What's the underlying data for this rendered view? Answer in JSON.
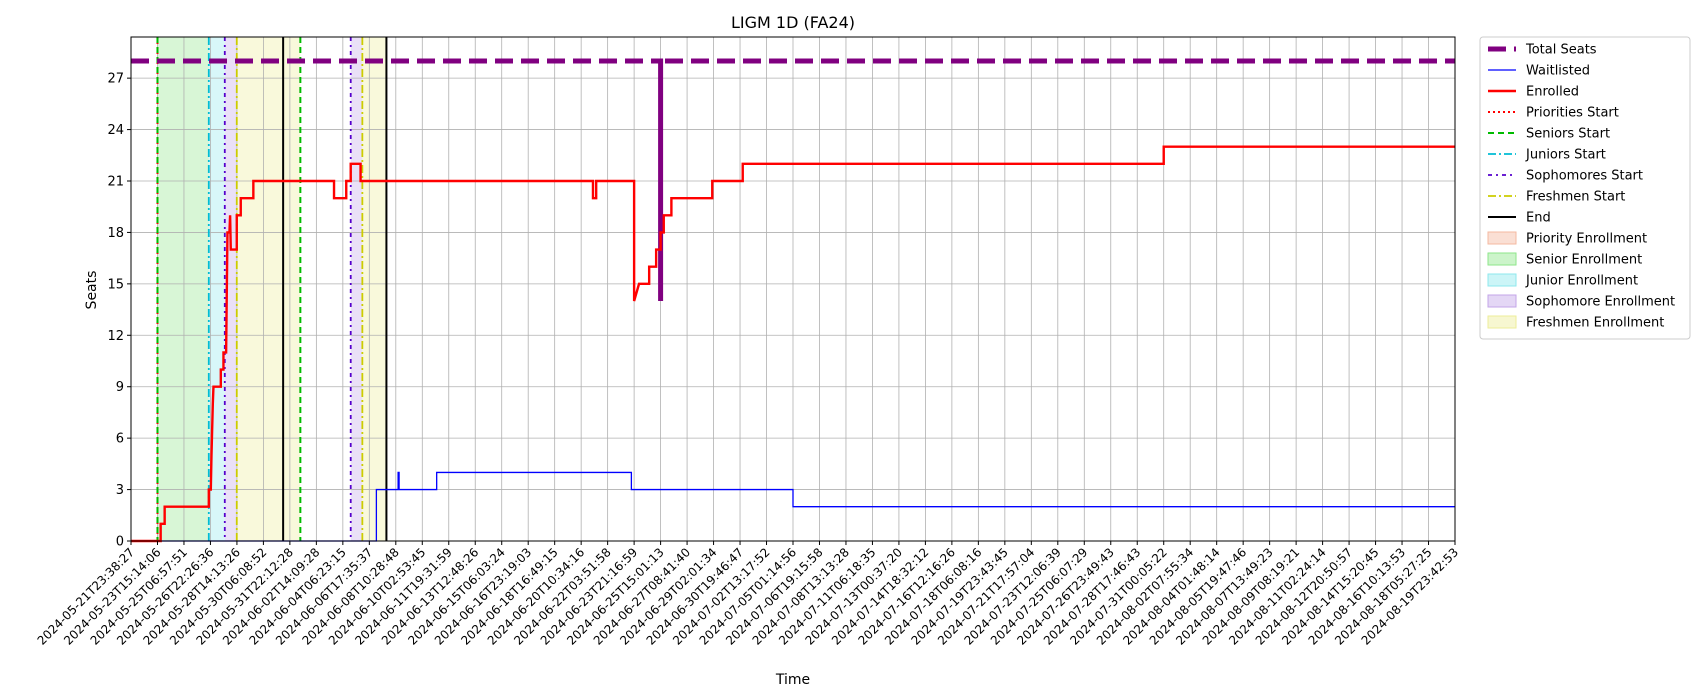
{
  "chart_data": {
    "type": "line",
    "title": "LIGM 1D (FA24)",
    "xlabel": "Time",
    "ylabel": "Seats",
    "ylim": [
      0,
      29.4
    ],
    "yticks": [
      0,
      3,
      6,
      9,
      12,
      15,
      18,
      21,
      24,
      27
    ],
    "x_range": [
      "2024-05-21T23:38:27",
      "2024-08-19T23:42:53"
    ],
    "x_tick_labels": [
      "2024-05-21T23:38:27",
      "2024-05-23T15:14:06",
      "2024-05-25T06:57:51",
      "2024-05-26T22:26:36",
      "2024-05-28T14:13:26",
      "2024-05-30T06:08:52",
      "2024-05-31T22:12:28",
      "2024-06-02T14:09:28",
      "2024-06-04T06:23:15",
      "2024-06-06T17:35:37",
      "2024-06-08T10:28:48",
      "2024-06-10T02:53:45",
      "2024-06-11T19:31:59",
      "2024-06-13T12:48:26",
      "2024-06-15T06:03:24",
      "2024-06-16T23:19:03",
      "2024-06-18T16:49:15",
      "2024-06-20T10:34:16",
      "2024-06-22T03:51:58",
      "2024-06-23T21:16:59",
      "2024-06-25T15:01:13",
      "2024-06-27T08:41:40",
      "2024-06-29T02:01:34",
      "2024-06-30T19:46:47",
      "2024-07-02T13:17:52",
      "2024-07-05T01:14:56",
      "2024-07-06T19:15:58",
      "2024-07-08T13:13:28",
      "2024-07-11T06:18:35",
      "2024-07-13T00:37:20",
      "2024-07-14T18:32:12",
      "2024-07-16T12:16:26",
      "2024-07-18T06:08:16",
      "2024-07-19T23:43:45",
      "2024-07-21T17:57:04",
      "2024-07-23T12:06:39",
      "2024-07-25T06:07:29",
      "2024-07-26T23:49:43",
      "2024-07-28T17:46:43",
      "2024-07-31T00:05:22",
      "2024-08-02T07:55:34",
      "2024-08-04T01:48:14",
      "2024-08-05T19:47:46",
      "2024-08-07T13:49:23",
      "2024-08-09T08:19:21",
      "2024-08-11T02:24:14",
      "2024-08-12T20:50:57",
      "2024-08-14T15:20:45",
      "2024-08-16T10:13:53",
      "2024-08-18T05:27:25",
      "2024-08-19T23:42:53"
    ],
    "grid": true,
    "legend_position": "outside-right",
    "series": [
      {
        "name": "Total Seats",
        "style": "dashed-thick",
        "color": "#800080",
        "points": [
          {
            "x": "2024-05-21T23:38:27",
            "y": 28
          },
          {
            "x": "2024-06-25T15:01:13",
            "y": 28
          },
          {
            "x": "2024-06-25T15:01:13",
            "y": 14
          },
          {
            "x": "2024-06-25T15:01:13",
            "y": 28
          },
          {
            "x": "2024-08-19T23:42:53",
            "y": 28
          }
        ]
      },
      {
        "name": "Waitlisted",
        "style": "solid-thin",
        "color": "#0000ff",
        "points": [
          {
            "x": "2024-05-21T23:38:27",
            "y": 0
          },
          {
            "x": "2024-06-07T04:30:00",
            "y": 0
          },
          {
            "x": "2024-06-07T04:30:00",
            "y": 3
          },
          {
            "x": "2024-06-08T14:00:00",
            "y": 3
          },
          {
            "x": "2024-06-08T14:00:00",
            "y": 4
          },
          {
            "x": "2024-06-08T15:30:00",
            "y": 4
          },
          {
            "x": "2024-06-08T15:30:00",
            "y": 3
          },
          {
            "x": "2024-06-11T01:00:00",
            "y": 3
          },
          {
            "x": "2024-06-11T01:00:00",
            "y": 4
          },
          {
            "x": "2024-06-23T17:00:00",
            "y": 4
          },
          {
            "x": "2024-06-23T17:00:00",
            "y": 3
          },
          {
            "x": "2024-07-05T01:14:56",
            "y": 3
          },
          {
            "x": "2024-07-05T01:14:56",
            "y": 2
          },
          {
            "x": "2024-08-19T23:42:53",
            "y": 2
          }
        ]
      },
      {
        "name": "Enrolled",
        "style": "solid-thick",
        "color": "#ff0000",
        "points": [
          {
            "x": "2024-05-21T23:38:27",
            "y": 0
          },
          {
            "x": "2024-05-23T20:00:00",
            "y": 0
          },
          {
            "x": "2024-05-23T20:00:00",
            "y": 1
          },
          {
            "x": "2024-05-24T02:00:00",
            "y": 1
          },
          {
            "x": "2024-05-24T02:00:00",
            "y": 2
          },
          {
            "x": "2024-05-26T20:00:00",
            "y": 2
          },
          {
            "x": "2024-05-26T20:00:00",
            "y": 3
          },
          {
            "x": "2024-05-26T23:00:00",
            "y": 3
          },
          {
            "x": "2024-05-27T00:00:00",
            "y": 5
          },
          {
            "x": "2024-05-27T02:00:00",
            "y": 8
          },
          {
            "x": "2024-05-27T03:00:00",
            "y": 9
          },
          {
            "x": "2024-05-27T14:00:00",
            "y": 9
          },
          {
            "x": "2024-05-27T14:00:00",
            "y": 10
          },
          {
            "x": "2024-05-27T18:00:00",
            "y": 10
          },
          {
            "x": "2024-05-27T18:00:00",
            "y": 11
          },
          {
            "x": "2024-05-27T22:00:00",
            "y": 11
          },
          {
            "x": "2024-05-28T00:00:00",
            "y": 18
          },
          {
            "x": "2024-05-28T03:00:00",
            "y": 18
          },
          {
            "x": "2024-05-28T04:00:00",
            "y": 19
          },
          {
            "x": "2024-05-28T05:00:00",
            "y": 17
          },
          {
            "x": "2024-05-28T14:00:00",
            "y": 17
          },
          {
            "x": "2024-05-28T14:00:00",
            "y": 19
          },
          {
            "x": "2024-05-28T20:00:00",
            "y": 19
          },
          {
            "x": "2024-05-28T20:00:00",
            "y": 20
          },
          {
            "x": "2024-05-29T15:00:00",
            "y": 20
          },
          {
            "x": "2024-05-29T15:00:00",
            "y": 21
          },
          {
            "x": "2024-06-03T17:00:00",
            "y": 21
          },
          {
            "x": "2024-06-03T17:00:00",
            "y": 20
          },
          {
            "x": "2024-06-04T14:00:00",
            "y": 20
          },
          {
            "x": "2024-06-04T14:00:00",
            "y": 21
          },
          {
            "x": "2024-06-05T00:00:00",
            "y": 21
          },
          {
            "x": "2024-06-05T00:00:00",
            "y": 22
          },
          {
            "x": "2024-06-05T22:00:00",
            "y": 22
          },
          {
            "x": "2024-06-05T22:00:00",
            "y": 21
          },
          {
            "x": "2024-06-21T05:00:00",
            "y": 21
          },
          {
            "x": "2024-06-21T05:00:00",
            "y": 20
          },
          {
            "x": "2024-06-21T10:00:00",
            "y": 20
          },
          {
            "x": "2024-06-21T10:00:00",
            "y": 21
          },
          {
            "x": "2024-06-23T21:16:59",
            "y": 21
          },
          {
            "x": "2024-06-23T21:16:59",
            "y": 14
          },
          {
            "x": "2024-06-24T05:00:00",
            "y": 15
          },
          {
            "x": "2024-06-24T21:00:00",
            "y": 15
          },
          {
            "x": "2024-06-24T21:00:00",
            "y": 16
          },
          {
            "x": "2024-06-25T08:00:00",
            "y": 16
          },
          {
            "x": "2024-06-25T08:00:00",
            "y": 17
          },
          {
            "x": "2024-06-25T15:00:00",
            "y": 17
          },
          {
            "x": "2024-06-25T15:00:00",
            "y": 18
          },
          {
            "x": "2024-06-25T20:00:00",
            "y": 18
          },
          {
            "x": "2024-06-25T20:00:00",
            "y": 19
          },
          {
            "x": "2024-06-26T08:00:00",
            "y": 19
          },
          {
            "x": "2024-06-26T08:00:00",
            "y": 20
          },
          {
            "x": "2024-06-29T00:00:00",
            "y": 20
          },
          {
            "x": "2024-06-29T00:00:00",
            "y": 21
          },
          {
            "x": "2024-07-01T00:00:00",
            "y": 21
          },
          {
            "x": "2024-07-01T00:00:00",
            "y": 22
          },
          {
            "x": "2024-07-31T00:05:22",
            "y": 22
          },
          {
            "x": "2024-07-31T00:05:22",
            "y": 23
          },
          {
            "x": "2024-08-19T23:42:53",
            "y": 23
          }
        ]
      }
    ],
    "events": [
      {
        "name": "Priorities Start",
        "x": "2024-05-23T15:14:06",
        "style": "dotted",
        "color": "#ff0000"
      },
      {
        "name": "Seniors Start",
        "x": "2024-05-23T15:14:06",
        "style": "dashed",
        "color": "#00bb00"
      },
      {
        "name": "Seniors Start",
        "x": "2024-06-01T14:00:00",
        "style": "dashed",
        "color": "#00bb00"
      },
      {
        "name": "Juniors Start",
        "x": "2024-05-26T20:00:00",
        "style": "dashdot",
        "color": "#00bcd4"
      },
      {
        "name": "Sophomores Start",
        "x": "2024-05-27T20:00:00",
        "style": "dashdotted",
        "color": "#5500cc"
      },
      {
        "name": "Sophomores Start",
        "x": "2024-06-05T00:00:00",
        "style": "dashdotted",
        "color": "#5500cc"
      },
      {
        "name": "Freshmen Start",
        "x": "2024-05-28T14:00:00",
        "style": "dashdot",
        "color": "#cccc00"
      },
      {
        "name": "Freshmen Start",
        "x": "2024-06-06T02:00:00",
        "style": "dashdot",
        "color": "#cccc00"
      },
      {
        "name": "End",
        "x": "2024-05-31T12:00:00",
        "style": "solid",
        "color": "#000000"
      },
      {
        "name": "End",
        "x": "2024-06-07T20:00:00",
        "style": "solid",
        "color": "#000000"
      }
    ],
    "periods": [
      {
        "name": "Priority Enrollment",
        "start": "2024-05-23T15:14:06",
        "end": "2024-05-23T15:14:06",
        "color": "#f4b9a0"
      },
      {
        "name": "Senior Enrollment",
        "start": "2024-05-23T15:14:06",
        "end": "2024-05-26T20:00:00",
        "color": "#8ee68a"
      },
      {
        "name": "Junior Enrollment",
        "start": "2024-05-26T20:00:00",
        "end": "2024-05-27T20:00:00",
        "color": "#8ee8ee"
      },
      {
        "name": "Sophomore Enrollment",
        "start": "2024-05-27T20:00:00",
        "end": "2024-05-28T14:00:00",
        "color": "#c3a6e8"
      },
      {
        "name": "Freshmen Enrollment",
        "start": "2024-05-28T14:00:00",
        "end": "2024-05-31T12:00:00",
        "color": "#eeee99"
      },
      {
        "name": "Freshmen Enrollment",
        "start": "2024-05-31T12:00:00",
        "end": "2024-06-01T14:00:00",
        "color": "#eeee99"
      },
      {
        "name": "Sophomore Enrollment",
        "start": "2024-06-05T00:00:00",
        "end": "2024-06-06T02:00:00",
        "color": "#c3a6e8"
      },
      {
        "name": "Freshmen Enrollment",
        "start": "2024-06-06T02:00:00",
        "end": "2024-06-07T20:00:00",
        "color": "#eeee99"
      }
    ],
    "legend": [
      {
        "label": "Total Seats",
        "kind": "line",
        "style": "dashed-thick",
        "color": "#800080"
      },
      {
        "label": "Waitlisted",
        "kind": "line",
        "style": "solid-thin",
        "color": "#0000ff"
      },
      {
        "label": "Enrolled",
        "kind": "line",
        "style": "solid-thick",
        "color": "#ff0000"
      },
      {
        "label": "Priorities Start",
        "kind": "line",
        "style": "dotted",
        "color": "#ff0000"
      },
      {
        "label": "Seniors Start",
        "kind": "line",
        "style": "dashed",
        "color": "#00bb00"
      },
      {
        "label": "Juniors Start",
        "kind": "line",
        "style": "dashdot",
        "color": "#00bcd4"
      },
      {
        "label": "Sophomores Start",
        "kind": "line",
        "style": "dashdotted",
        "color": "#5500cc"
      },
      {
        "label": "Freshmen Start",
        "kind": "line",
        "style": "dashdot",
        "color": "#cccc00"
      },
      {
        "label": "End",
        "kind": "line",
        "style": "solid",
        "color": "#000000"
      },
      {
        "label": "Priority Enrollment",
        "kind": "patch",
        "color": "#f4b9a0"
      },
      {
        "label": "Senior Enrollment",
        "kind": "patch",
        "color": "#8ee68a"
      },
      {
        "label": "Junior Enrollment",
        "kind": "patch",
        "color": "#8ee8ee"
      },
      {
        "label": "Sophomore Enrollment",
        "kind": "patch",
        "color": "#c3a6e8"
      },
      {
        "label": "Freshmen Enrollment",
        "kind": "patch",
        "color": "#eeee99"
      }
    ]
  }
}
